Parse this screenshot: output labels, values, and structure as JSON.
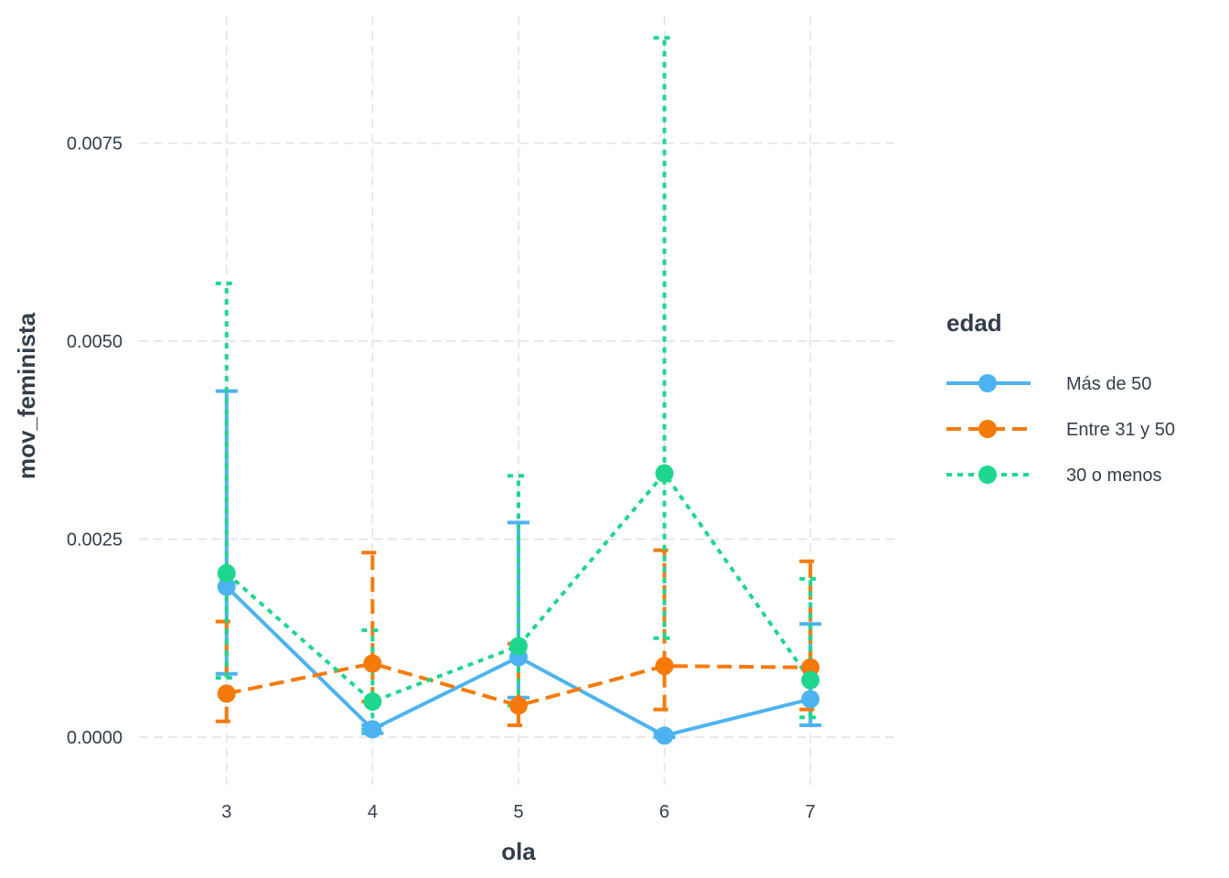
{
  "chart_data": {
    "type": "line",
    "xlabel": "ola",
    "ylabel": "mov_feminista",
    "x": [
      3,
      4,
      5,
      6,
      7
    ],
    "xlim": [
      2.4,
      7.6
    ],
    "ylim": [
      -0.0006,
      0.0091
    ],
    "y_ticks": [
      0,
      0.0025,
      0.005,
      0.0075
    ],
    "y_tick_labels": [
      "0.0000",
      "0.0025",
      "0.0050",
      "0.0075"
    ],
    "x_tick_labels": [
      "3",
      "4",
      "5",
      "6",
      "7"
    ],
    "grid": true,
    "grid_style": "dashed",
    "legend": {
      "title": "edad",
      "position": "right"
    },
    "series": [
      {
        "name": "Más de 50",
        "color": "#4db3f0",
        "linetype": "solid",
        "values": [
          0.0019,
          0.0001,
          0.00101,
          2e-05,
          0.00048
        ],
        "ci_low": [
          0.0008,
          5e-05,
          0.0005,
          0.0,
          0.00015
        ],
        "ci_high": [
          0.00437,
          0.00015,
          0.00271,
          5e-05,
          0.00143
        ]
      },
      {
        "name": "Entre 31 y 50",
        "color": "#f67a0a",
        "linetype": "dashed",
        "values": [
          0.00055,
          0.00093,
          0.0004,
          0.0009,
          0.00088
        ],
        "ci_low": [
          0.0002,
          0.00045,
          0.00015,
          0.00035,
          0.00035
        ],
        "ci_high": [
          0.00146,
          0.00233,
          0.00118,
          0.00236,
          0.00222
        ]
      },
      {
        "name": "30 o menos",
        "color": "#1fd68f",
        "linetype": "dotted",
        "values": [
          0.00207,
          0.00045,
          0.00115,
          0.00333,
          0.00072
        ],
        "ci_low": [
          0.00075,
          0.0001,
          0.0004,
          0.00125,
          0.00025
        ],
        "ci_high": [
          0.00573,
          0.00135,
          0.0033,
          0.00883,
          0.002
        ]
      }
    ]
  }
}
